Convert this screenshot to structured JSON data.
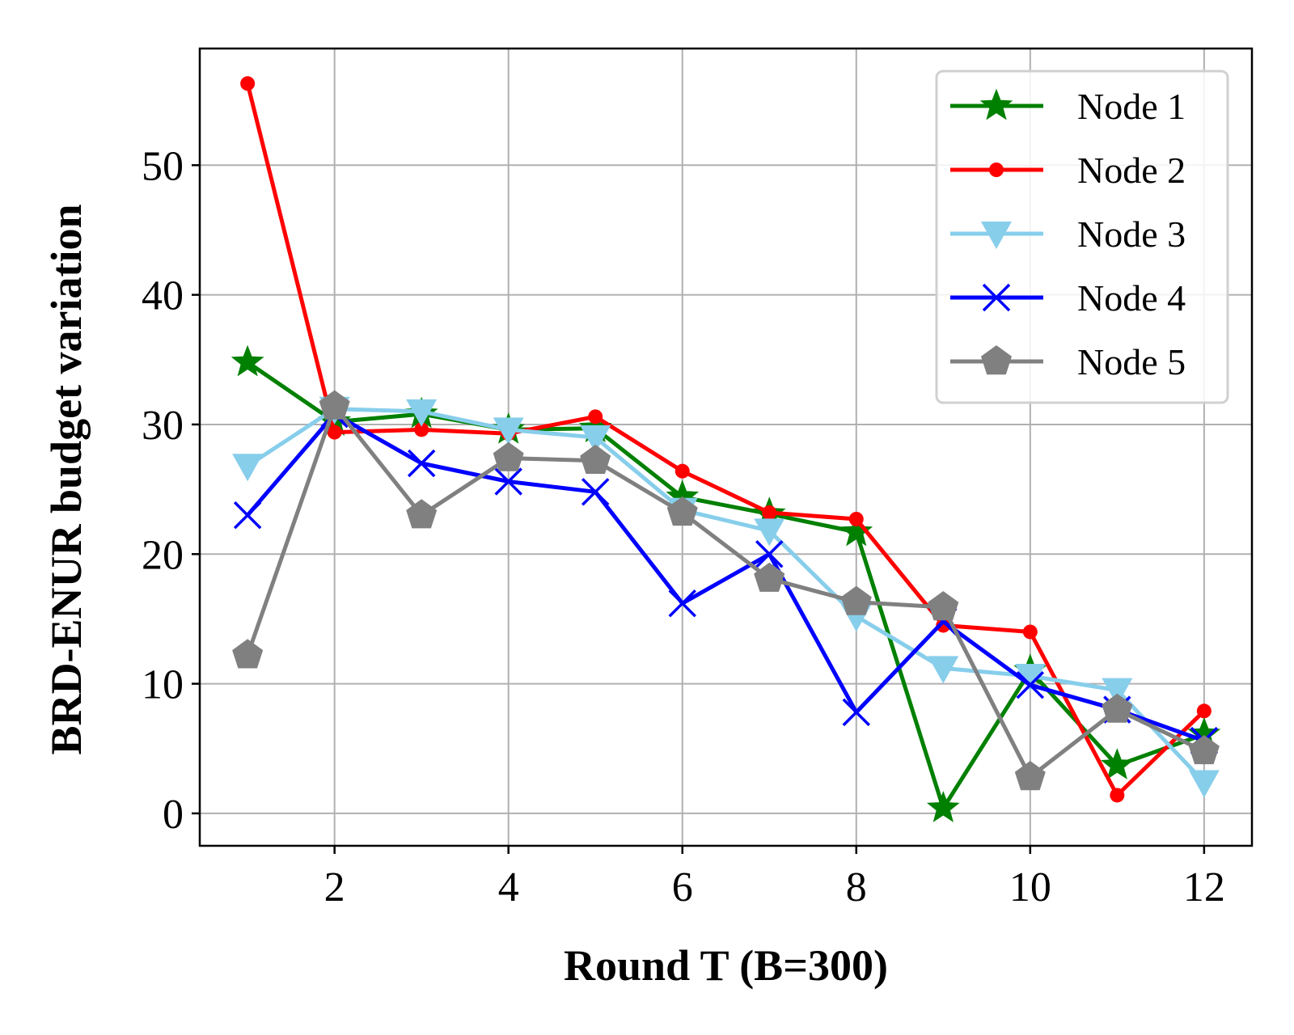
{
  "chart_data": {
    "type": "line",
    "xlabel": "Round T (B=300)",
    "ylabel": "BRD-ENUR budget variation",
    "x": [
      1,
      2,
      3,
      4,
      5,
      6,
      7,
      8,
      9,
      10,
      11,
      12
    ],
    "xlim": [
      0.45,
      12.55
    ],
    "ylim": [
      -2.5,
      59.0
    ],
    "xticks": [
      2,
      4,
      6,
      8,
      10,
      12
    ],
    "yticks": [
      0,
      10,
      20,
      30,
      40,
      50
    ],
    "grid": true,
    "legend_position": "top-right",
    "series": [
      {
        "name": "Node 1",
        "color": "#008000",
        "marker": "star",
        "values": [
          34.8,
          30.2,
          30.8,
          29.6,
          29.7,
          24.4,
          23.1,
          21.7,
          0.4,
          11.0,
          3.7,
          6.1
        ]
      },
      {
        "name": "Node 2",
        "color": "#ff0000",
        "marker": "dot",
        "values": [
          56.3,
          29.4,
          29.6,
          29.3,
          30.6,
          26.4,
          23.2,
          22.7,
          14.5,
          14.0,
          1.4,
          7.9
        ]
      },
      {
        "name": "Node 3",
        "color": "#87ceeb",
        "marker": "triangle-down",
        "values": [
          26.8,
          31.2,
          31.0,
          29.6,
          29.0,
          23.4,
          21.8,
          15.2,
          11.2,
          10.6,
          9.5,
          2.4
        ]
      },
      {
        "name": "Node 4",
        "color": "#0000ff",
        "marker": "x",
        "values": [
          23.0,
          30.8,
          27.0,
          25.6,
          24.8,
          16.2,
          20.0,
          7.8,
          14.8,
          9.9,
          8.0,
          5.6
        ]
      },
      {
        "name": "Node 5",
        "color": "#808080",
        "marker": "pentagon",
        "values": [
          12.2,
          31.4,
          23.0,
          27.4,
          27.2,
          23.2,
          18.1,
          16.3,
          15.9,
          2.8,
          8.0,
          4.8
        ]
      }
    ]
  }
}
